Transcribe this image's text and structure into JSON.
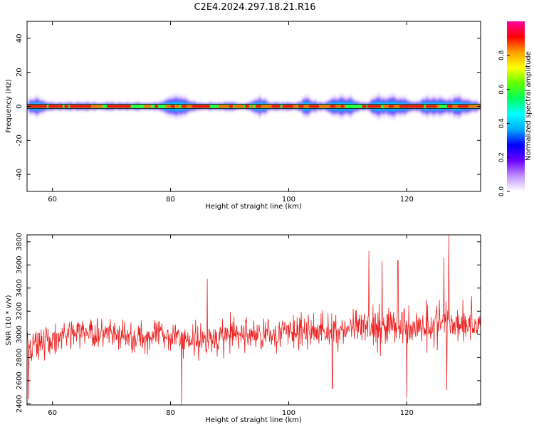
{
  "title": "C2E4.2024.297.18.21.R16",
  "chart_data": [
    {
      "type": "heatmap",
      "xlabel": "Height of straight line (km)",
      "ylabel": "Frequency (Hz)",
      "xlim": [
        55.7,
        132.5
      ],
      "ylim": [
        -50,
        50
      ],
      "xticks": [
        60,
        80,
        100,
        120
      ],
      "yticks": [
        40,
        20,
        0,
        -20,
        -40
      ],
      "colorbar": {
        "label": "Normalized spectral amplitude",
        "range": [
          0,
          1
        ],
        "ticks": [
          "0.0",
          "0.2",
          "0.4",
          "0.6",
          "0.8"
        ],
        "colors": [
          "#ffffff",
          "#c090ff",
          "#6a00ff",
          "#0000ff",
          "#00aaff",
          "#00ffff",
          "#00ff60",
          "#60ff00",
          "#ffff00",
          "#ffa000",
          "#ff0000",
          "#ff00a0"
        ]
      },
      "note": "Energy concentrated near 0 Hz across all heights; broadening to about ±3 Hz near 80, 95, 108, 115, 119, 123 and 130 km"
    },
    {
      "type": "line",
      "xlabel": "Height of straight line (km)",
      "ylabel": "SNR (10 * v/v)",
      "xlim": [
        55.7,
        132.5
      ],
      "ylim": [
        2390,
        3860
      ],
      "xticks": [
        60,
        80,
        100,
        120
      ],
      "yticks": [
        2400,
        2600,
        2800,
        3000,
        3200,
        3400,
        3600,
        3800
      ],
      "grid": false,
      "color": "#ee2222",
      "series": [
        {
          "x": [
            56,
            58,
            60,
            62,
            64,
            66,
            68,
            70,
            72,
            74,
            76,
            78,
            80,
            82,
            84,
            86,
            88,
            90,
            92,
            94,
            96,
            98,
            100,
            102,
            104,
            106,
            108,
            110,
            112,
            114,
            116,
            118,
            120,
            122,
            124,
            126,
            128,
            130,
            132
          ],
          "values": [
            2880,
            2930,
            2960,
            2990,
            3010,
            3020,
            3000,
            2990,
            2980,
            2970,
            2980,
            2990,
            3000,
            2960,
            2950,
            2960,
            2970,
            2990,
            3000,
            3000,
            2990,
            3010,
            3020,
            3010,
            3030,
            3040,
            3030,
            3050,
            3040,
            3080,
            3070,
            3090,
            3060,
            3070,
            3090,
            3090,
            3110,
            3100,
            3080
          ],
          "spread": [
            220,
            210,
            200,
            190,
            190,
            190,
            190,
            190,
            190,
            190,
            190,
            190,
            200,
            210,
            220,
            220,
            220,
            220,
            220,
            220,
            220,
            220,
            230,
            230,
            240,
            240,
            240,
            250,
            260,
            270,
            270,
            270,
            280,
            280,
            280,
            270,
            270,
            260,
            250
          ],
          "peaks": [
            {
              "x": 113.6,
              "y": 3720
            },
            {
              "x": 115.8,
              "y": 3630
            },
            {
              "x": 118.5,
              "y": 3640
            },
            {
              "x": 127.1,
              "y": 3860
            },
            {
              "x": 126.3,
              "y": 3660
            },
            {
              "x": 86.2,
              "y": 3480
            }
          ],
          "troughs": [
            {
              "x": 56.0,
              "y": 2440
            },
            {
              "x": 81.9,
              "y": 2390
            },
            {
              "x": 120.0,
              "y": 2450
            },
            {
              "x": 126.8,
              "y": 2520
            },
            {
              "x": 107.4,
              "y": 2530
            }
          ]
        }
      ]
    }
  ]
}
